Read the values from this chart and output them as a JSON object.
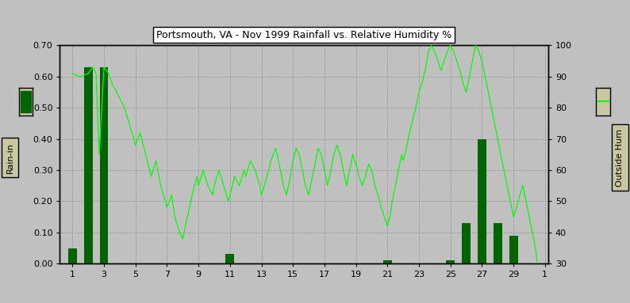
{
  "title": "Portsmouth, VA - Nov 1999 Rainfall vs. Relative Humidity %",
  "xlabel_left": "Rain-in",
  "xlabel_right": "Outside Hum",
  "bg_color": "#c0c0c0",
  "plot_bg_color": "#c0c0c0",
  "bar_color": "#006400",
  "line_color": "#00ff00",
  "ylim_left": [
    0.0,
    0.7
  ],
  "ylim_right": [
    30,
    100
  ],
  "yticks_left": [
    0.0,
    0.1,
    0.2,
    0.3,
    0.4,
    0.5,
    0.6,
    0.7
  ],
  "yticks_right": [
    30,
    40,
    50,
    60,
    70,
    80,
    90,
    100
  ],
  "rain_days": [
    1,
    2,
    3,
    4,
    5,
    6,
    7,
    8,
    9,
    10,
    11,
    12,
    13,
    14,
    15,
    16,
    17,
    18,
    19,
    20,
    21,
    22,
    23,
    24,
    25,
    26,
    27,
    28,
    29,
    30
  ],
  "rain_vals": [
    0.05,
    0.63,
    0.63,
    0.0,
    0.0,
    0.0,
    0.0,
    0.0,
    0.0,
    0.0,
    0.03,
    0.0,
    0.0,
    0.0,
    0.0,
    0.0,
    0.0,
    0.0,
    0.0,
    0.0,
    0.01,
    0.0,
    0.0,
    0.0,
    0.01,
    0.13,
    0.4,
    0.13,
    0.09,
    0.0
  ],
  "legend_bar_color": "#006400",
  "legend_line_color": "#00ff00",
  "legend_bg": "#c8c8a0"
}
